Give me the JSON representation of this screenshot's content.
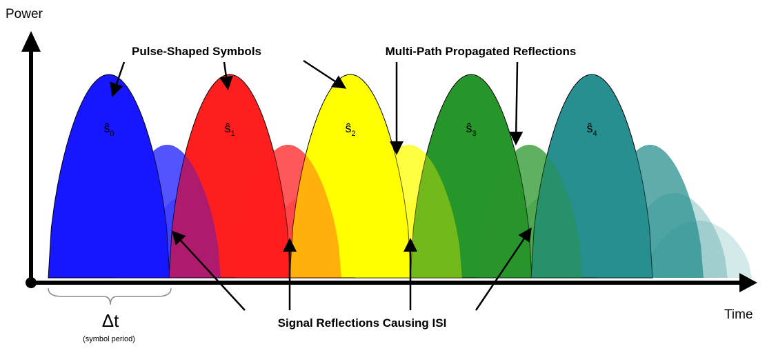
{
  "axes": {
    "y_label": "Power",
    "x_label": "Time"
  },
  "annotations": {
    "pulses": "Pulse-Shaped Symbols",
    "reflections": "Multi-Path Propagated Reflections",
    "isi": "Signal Reflections Causing ISI"
  },
  "period": {
    "symbol": "Δt",
    "caption": "(symbol period)"
  },
  "symbols": [
    {
      "name": "ŝ",
      "index": "0",
      "color": "#1616ff"
    },
    {
      "name": "ŝ",
      "index": "1",
      "color": "#ff1e1e"
    },
    {
      "name": "ŝ",
      "index": "2",
      "color": "#ffff00"
    },
    {
      "name": "ŝ",
      "index": "3",
      "color": "#27962a"
    },
    {
      "name": "ŝ",
      "index": "4",
      "color": "#278f8f"
    }
  ]
}
